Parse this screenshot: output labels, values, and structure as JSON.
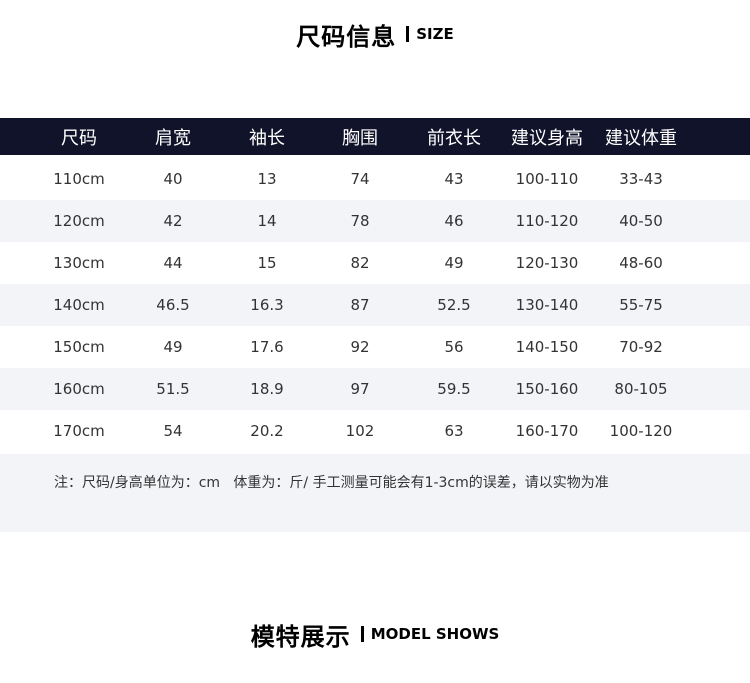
{
  "size_title": {
    "cn": "尺码信息",
    "en": "SIZE"
  },
  "table": {
    "headers": [
      "尺码",
      "肩宽",
      "袖长",
      "胸围",
      "前衣长",
      "建议身高",
      "建议体重"
    ],
    "rows": [
      [
        "110cm",
        "40",
        "13",
        "74",
        "43",
        "100-110",
        "33-43"
      ],
      [
        "120cm",
        "42",
        "14",
        "78",
        "46",
        "110-120",
        "40-50"
      ],
      [
        "130cm",
        "44",
        "15",
        "82",
        "49",
        "120-130",
        "48-60"
      ],
      [
        "140cm",
        "46.5",
        "16.3",
        "87",
        "52.5",
        "130-140",
        "55-75"
      ],
      [
        "150cm",
        "49",
        "17.6",
        "92",
        "56",
        "140-150",
        "70-92"
      ],
      [
        "160cm",
        "51.5",
        "18.9",
        "97",
        "59.5",
        "150-160",
        "80-105"
      ],
      [
        "170cm",
        "54",
        "20.2",
        "102",
        "63",
        "160-170",
        "100-120"
      ]
    ]
  },
  "note": "注：尺码/身高单位为：cm   体重为：斤/ 手工测量可能会有1-3cm的误差，请以实物为准",
  "model_title": {
    "cn": "模特展示",
    "en": "MODEL SHOWS"
  },
  "colors": {
    "header_bg": "#11132a",
    "alt_row_bg": "#f3f4f8"
  }
}
